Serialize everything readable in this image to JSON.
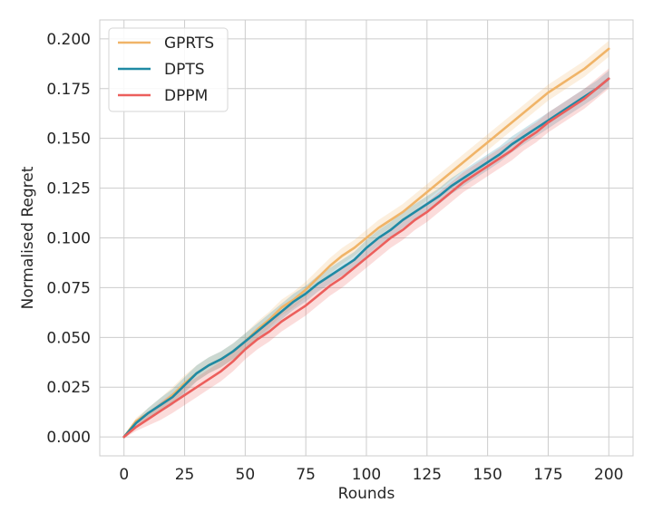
{
  "chart_data": {
    "type": "line",
    "title": "",
    "xlabel": "Rounds",
    "ylabel": "Normalised Regret",
    "xlim": [
      -10,
      210
    ],
    "ylim": [
      -0.0095,
      0.2095
    ],
    "xticks": [
      0,
      25,
      50,
      75,
      100,
      125,
      150,
      175,
      200
    ],
    "yticks": [
      0.0,
      0.025,
      0.05,
      0.075,
      0.1,
      0.125,
      0.15,
      0.175,
      0.2
    ],
    "ytick_labels": [
      "0.000",
      "0.025",
      "0.050",
      "0.075",
      "0.100",
      "0.125",
      "0.150",
      "0.175",
      "0.200"
    ],
    "grid": true,
    "legend_position": "top-left",
    "x": [
      0,
      5,
      10,
      15,
      20,
      25,
      30,
      35,
      40,
      45,
      50,
      55,
      60,
      65,
      70,
      75,
      80,
      85,
      90,
      95,
      100,
      105,
      110,
      115,
      120,
      125,
      130,
      135,
      140,
      145,
      150,
      155,
      160,
      165,
      170,
      175,
      180,
      185,
      190,
      195,
      200
    ],
    "series": [
      {
        "name": "GPRTS",
        "color": "#f0b468",
        "band": 0.004,
        "values": [
          0.0,
          0.008,
          0.012,
          0.016,
          0.021,
          0.027,
          0.032,
          0.036,
          0.039,
          0.043,
          0.048,
          0.054,
          0.059,
          0.065,
          0.069,
          0.074,
          0.08,
          0.086,
          0.091,
          0.095,
          0.1,
          0.105,
          0.109,
          0.113,
          0.118,
          0.123,
          0.128,
          0.133,
          0.138,
          0.143,
          0.148,
          0.153,
          0.158,
          0.163,
          0.168,
          0.173,
          0.177,
          0.181,
          0.185,
          0.19,
          0.195
        ]
      },
      {
        "name": "DPTS",
        "color": "#1f8aa4",
        "band": 0.004,
        "values": [
          0.0,
          0.007,
          0.012,
          0.016,
          0.02,
          0.026,
          0.032,
          0.036,
          0.039,
          0.043,
          0.048,
          0.053,
          0.058,
          0.063,
          0.068,
          0.072,
          0.077,
          0.081,
          0.085,
          0.089,
          0.095,
          0.1,
          0.104,
          0.109,
          0.113,
          0.117,
          0.121,
          0.126,
          0.13,
          0.134,
          0.138,
          0.142,
          0.147,
          0.151,
          0.155,
          0.159,
          0.163,
          0.167,
          0.171,
          0.175,
          0.18
        ]
      },
      {
        "name": "DPPM",
        "color": "#ec5f5c",
        "band": 0.005,
        "values": [
          0.0,
          0.005,
          0.009,
          0.013,
          0.017,
          0.021,
          0.025,
          0.029,
          0.033,
          0.038,
          0.044,
          0.049,
          0.053,
          0.058,
          0.062,
          0.066,
          0.071,
          0.076,
          0.08,
          0.085,
          0.09,
          0.095,
          0.1,
          0.104,
          0.109,
          0.113,
          0.118,
          0.123,
          0.128,
          0.132,
          0.136,
          0.14,
          0.144,
          0.149,
          0.153,
          0.158,
          0.162,
          0.166,
          0.17,
          0.175,
          0.18
        ]
      }
    ]
  }
}
